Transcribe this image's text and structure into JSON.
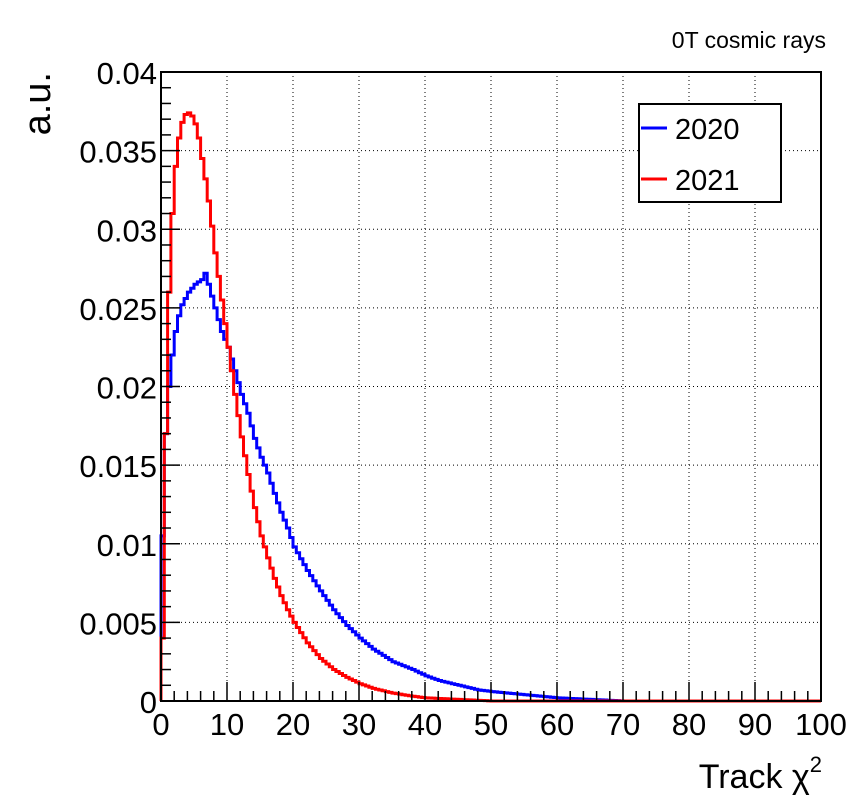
{
  "chart_data": {
    "type": "line",
    "title": "",
    "annotation": "0T cosmic rays",
    "xlabel": "Track χ",
    "xlabel_superscript": "2",
    "ylabel": "a.u.",
    "xlim": [
      0,
      100
    ],
    "ylim": [
      0,
      0.04
    ],
    "grid": true,
    "legend_position": "top-right",
    "x_ticks": [
      "0",
      "10",
      "20",
      "30",
      "40",
      "50",
      "60",
      "70",
      "80",
      "90",
      "100"
    ],
    "y_ticks": [
      "0",
      "0.005",
      "0.01",
      "0.015",
      "0.02",
      "0.025",
      "0.03",
      "0.035",
      "0.04"
    ],
    "bin_width": 0.5,
    "series": [
      {
        "name": "2020",
        "color": "#0000ff",
        "x": [
          0,
          0.5,
          1,
          1.5,
          2,
          2.5,
          3,
          4,
          5,
          6,
          6.5,
          7,
          8,
          9,
          10,
          11,
          12,
          13,
          14,
          15,
          16,
          17,
          18,
          19,
          20,
          22,
          24,
          26,
          28,
          30,
          32,
          35,
          38,
          40,
          42,
          45,
          48,
          50,
          55,
          60,
          65,
          70,
          80,
          90,
          100
        ],
        "y": [
          0.0105,
          0.017,
          0.02,
          0.022,
          0.0235,
          0.0245,
          0.0252,
          0.026,
          0.0265,
          0.0268,
          0.0272,
          0.0265,
          0.025,
          0.0235,
          0.0225,
          0.021,
          0.0195,
          0.0183,
          0.0167,
          0.0155,
          0.0145,
          0.0132,
          0.012,
          0.011,
          0.0098,
          0.0083,
          0.007,
          0.0058,
          0.0048,
          0.004,
          0.0033,
          0.0025,
          0.002,
          0.0016,
          0.0013,
          0.001,
          0.0007,
          0.0006,
          0.0004,
          0.0002,
          0.0001,
          0.0,
          0.0,
          0.0,
          0.0
        ]
      },
      {
        "name": "2021",
        "color": "#ff0000",
        "x": [
          0,
          0.5,
          1,
          1.5,
          2,
          2.5,
          3,
          3.5,
          4,
          4.5,
          5,
          5.5,
          6,
          6.5,
          7,
          7.5,
          8,
          9,
          10,
          11,
          12,
          13,
          14,
          15,
          16,
          17,
          18,
          19,
          20,
          22,
          24,
          26,
          28,
          30,
          32,
          35,
          38,
          40,
          45,
          50,
          55,
          60,
          70,
          80,
          90,
          100
        ],
        "y": [
          0.004,
          0.017,
          0.026,
          0.031,
          0.034,
          0.0358,
          0.0368,
          0.0373,
          0.0374,
          0.0372,
          0.0367,
          0.0358,
          0.0345,
          0.0332,
          0.0318,
          0.0302,
          0.0285,
          0.0255,
          0.0225,
          0.0195,
          0.0168,
          0.0144,
          0.0123,
          0.0105,
          0.0091,
          0.0078,
          0.0067,
          0.0058,
          0.005,
          0.0037,
          0.0027,
          0.002,
          0.0015,
          0.0011,
          0.0008,
          0.0005,
          0.0003,
          0.0002,
          0.0001,
          0.0,
          0.0,
          0.0,
          0.0,
          0.0,
          0.0,
          0.0
        ]
      }
    ]
  }
}
